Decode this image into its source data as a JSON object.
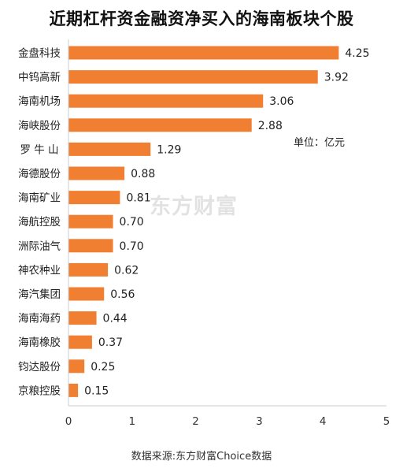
{
  "chart_data": {
    "type": "bar",
    "orientation": "horizontal",
    "title": "近期杠杆资金融资净买入的海南板块个股",
    "unit": "单位：亿元",
    "source": "数据来源:东方财富Choice数据",
    "watermark": "东方财富",
    "bar_color": "#f07f32",
    "categories": [
      "金盘科技",
      "中钨高新",
      "海南机场",
      "海峡股份",
      "罗 牛 山",
      "海德股份",
      "海南矿业",
      "海航控股",
      "洲际油气",
      "神农种业",
      "海汽集团",
      "海南海药",
      "海南橡胶",
      "钧达股份",
      "京粮控股"
    ],
    "values": [
      4.25,
      3.92,
      3.06,
      2.88,
      1.29,
      0.88,
      0.81,
      0.7,
      0.7,
      0.62,
      0.56,
      0.44,
      0.37,
      0.25,
      0.15
    ],
    "value_labels": [
      "4.25",
      "3.92",
      "3.06",
      "2.88",
      "1.29",
      "0.88",
      "0.81",
      "0.70",
      "0.70",
      "0.62",
      "0.56",
      "0.44",
      "0.37",
      "0.25",
      "0.15"
    ],
    "xlim": [
      0,
      5
    ],
    "xticks": [
      0,
      1,
      2,
      3,
      4,
      5
    ],
    "grid": false
  }
}
